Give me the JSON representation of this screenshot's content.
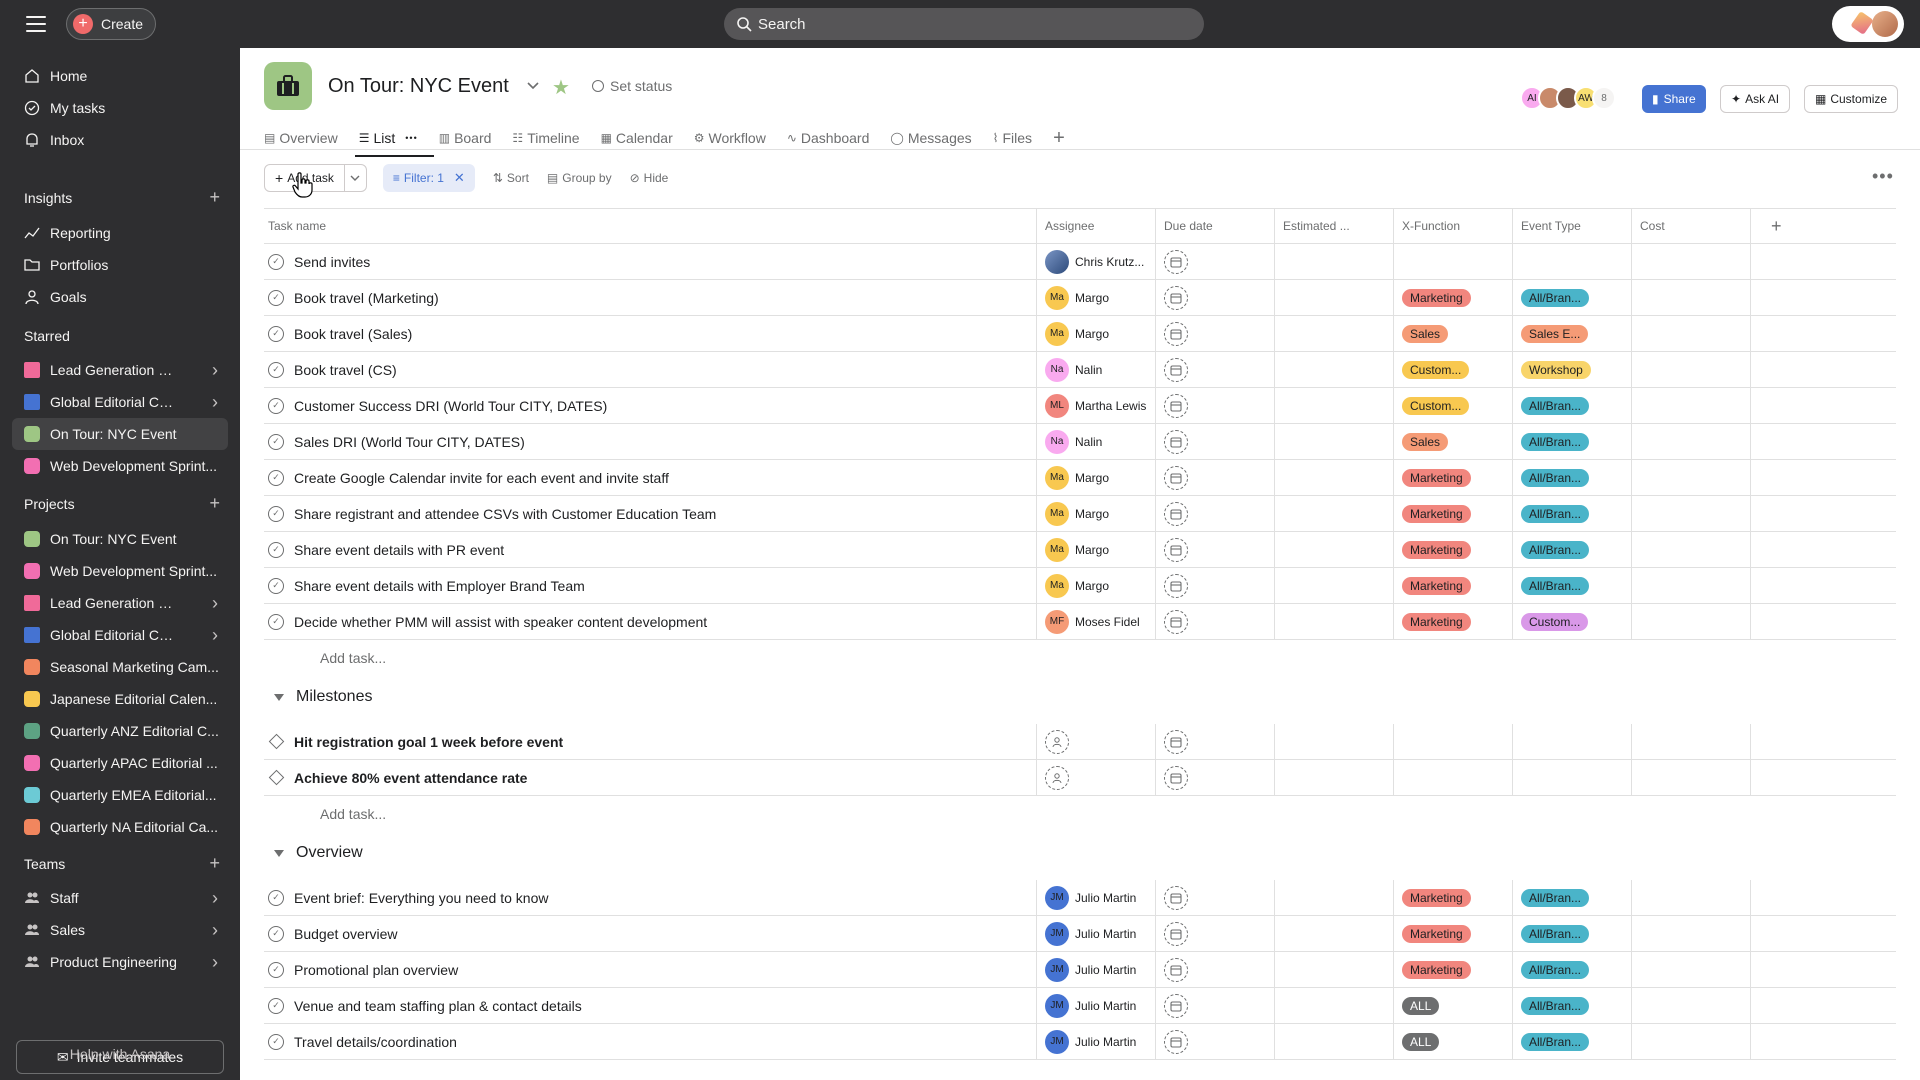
{
  "topbar": {
    "create_label": "Create",
    "search_placeholder": "Search"
  },
  "sidebar": {
    "nav": [
      {
        "label": "Home",
        "icon": "home-icon"
      },
      {
        "label": "My tasks",
        "icon": "check-circle-icon"
      },
      {
        "label": "Inbox",
        "icon": "bell-icon"
      }
    ],
    "insights_header": "Insights",
    "insights": [
      {
        "label": "Reporting",
        "icon": "chart-line-icon"
      },
      {
        "label": "Portfolios",
        "icon": "folder-icon"
      },
      {
        "label": "Goals",
        "icon": "person-icon"
      }
    ],
    "starred_header": "Starred",
    "starred": [
      {
        "label": "Lead Generation Ca...",
        "color": "#f06a99",
        "kind": "folder",
        "chevron": true
      },
      {
        "label": "Global Editorial Cale...",
        "color": "#4573d2",
        "kind": "folder",
        "chevron": true
      },
      {
        "label": "On Tour: NYC Event",
        "color": "#9ec684",
        "kind": "project",
        "chevron": false,
        "active": true
      },
      {
        "label": "Web Development Sprint...",
        "color": "#f26fb2",
        "kind": "project",
        "chevron": false
      }
    ],
    "projects_header": "Projects",
    "projects": [
      {
        "label": "On Tour: NYC Event",
        "color": "#9ec684",
        "kind": "project",
        "chevron": false
      },
      {
        "label": "Web Development Sprint...",
        "color": "#f26fb2",
        "kind": "project",
        "chevron": false
      },
      {
        "label": "Lead Generation Ca...",
        "color": "#f06a99",
        "kind": "folder",
        "chevron": true
      },
      {
        "label": "Global Editorial Cale...",
        "color": "#4573d2",
        "kind": "folder",
        "chevron": true
      },
      {
        "label": "Seasonal Marketing Cam...",
        "color": "#f1865e",
        "kind": "project",
        "chevron": false
      },
      {
        "label": "Japanese Editorial Calen...",
        "color": "#f8c850",
        "kind": "project",
        "chevron": false
      },
      {
        "label": "Quarterly ANZ Editorial C...",
        "color": "#5da283",
        "kind": "project",
        "chevron": false
      },
      {
        "label": "Quarterly APAC Editorial ...",
        "color": "#f26fb2",
        "kind": "project",
        "chevron": false
      },
      {
        "label": "Quarterly EMEA Editorial...",
        "color": "#6ccad5",
        "kind": "project",
        "chevron": false
      },
      {
        "label": "Quarterly NA Editorial Ca...",
        "color": "#f1865e",
        "kind": "project",
        "chevron": false
      }
    ],
    "teams_header": "Teams",
    "teams": [
      {
        "label": "Staff"
      },
      {
        "label": "Sales"
      },
      {
        "label": "Product Engineering"
      }
    ],
    "invite_label": "Invite teammates",
    "help_label": "Help with Asana"
  },
  "project": {
    "title": "On Tour: NYC Event",
    "set_status": "Set status",
    "members_count": "8",
    "members": [
      {
        "initials": "AI",
        "color": "#f9aaef"
      },
      {
        "initials": "",
        "color": "#c98a6a"
      },
      {
        "initials": "",
        "color": "#7a5a4a"
      },
      {
        "initials": "AW",
        "color": "#f8df72"
      }
    ],
    "share_label": "Share",
    "askai_label": "Ask AI",
    "customize_label": "Customize"
  },
  "tabs": [
    {
      "label": "Overview",
      "icon": "▤"
    },
    {
      "label": "List",
      "icon": "☰",
      "active": true
    },
    {
      "label": "Board",
      "icon": "▥"
    },
    {
      "label": "Timeline",
      "icon": "☷"
    },
    {
      "label": "Calendar",
      "icon": "▦"
    },
    {
      "label": "Workflow",
      "icon": "⚙"
    },
    {
      "label": "Dashboard",
      "icon": "∿"
    },
    {
      "label": "Messages",
      "icon": "◯"
    },
    {
      "label": "Files",
      "icon": "⌇"
    }
  ],
  "toolbar": {
    "add_task": "Add task",
    "filter": "Filter: 1",
    "sort": "Sort",
    "group_by": "Group by",
    "hide": "Hide"
  },
  "columns": [
    "Task name",
    "Assignee",
    "Due date",
    "Estimated ...",
    "X-Function",
    "Event Type",
    "Cost"
  ],
  "pill_colors": {
    "Marketing": "#f1867e",
    "Sales": "#f59b76",
    "Custom...": "#f8c850",
    "ALL": "#6d6e6f",
    "All/Bran...": "#4ab4c9",
    "Sales E...": "#f59b76",
    "Workshop": "#f8d46a",
    "Custom...E": "#d998e8"
  },
  "tasks": [
    {
      "name": "Send invites",
      "assignee": "Chris Krutz...",
      "initials": "",
      "av_color": "#4a6fa5",
      "xfn": "",
      "event": ""
    },
    {
      "name": "Book travel (Marketing)",
      "assignee": "Margo",
      "initials": "Ma",
      "av_color": "#f8c850",
      "xfn": "Marketing",
      "event": "All/Bran..."
    },
    {
      "name": "Book travel (Sales)",
      "assignee": "Margo",
      "initials": "Ma",
      "av_color": "#f8c850",
      "xfn": "Sales",
      "event": "Sales E..."
    },
    {
      "name": "Book travel (CS)",
      "assignee": "Nalin",
      "initials": "Na",
      "av_color": "#f9aaef",
      "xfn": "Custom...",
      "event": "Workshop"
    },
    {
      "name": "Customer Success DRI (World Tour CITY, DATES)",
      "assignee": "Martha Lewis",
      "initials": "ML",
      "av_color": "#f1867e",
      "xfn": "Custom...",
      "event": "All/Bran..."
    },
    {
      "name": "Sales DRI (World Tour CITY, DATES)",
      "assignee": "Nalin",
      "initials": "Na",
      "av_color": "#f9aaef",
      "xfn": "Sales",
      "event": "All/Bran..."
    },
    {
      "name": "Create Google Calendar invite for each event and invite staff",
      "assignee": "Margo",
      "initials": "Ma",
      "av_color": "#f8c850",
      "xfn": "Marketing",
      "event": "All/Bran..."
    },
    {
      "name": "Share registrant and attendee CSVs with Customer Education Team",
      "assignee": "Margo",
      "initials": "Ma",
      "av_color": "#f8c850",
      "xfn": "Marketing",
      "event": "All/Bran..."
    },
    {
      "name": "Share event details with PR event",
      "assignee": "Margo",
      "initials": "Ma",
      "av_color": "#f8c850",
      "xfn": "Marketing",
      "event": "All/Bran..."
    },
    {
      "name": "Share event details with Employer Brand Team",
      "assignee": "Margo",
      "initials": "Ma",
      "av_color": "#f8c850",
      "xfn": "Marketing",
      "event": "All/Bran..."
    },
    {
      "name": "Decide whether PMM will assist with speaker content development",
      "assignee": "Moses Fidel",
      "initials": "MF",
      "av_color": "#f59b76",
      "xfn": "Marketing",
      "event": "Custom..."
    }
  ],
  "add_task_row": "Add task...",
  "milestones_section": "Milestones",
  "milestones": [
    {
      "name": "Hit registration goal 1 week before event"
    },
    {
      "name": "Achieve 80% event attendance rate"
    }
  ],
  "overview_section": "Overview",
  "overview_tasks": [
    {
      "name": "Event brief: Everything you need to know",
      "assignee": "Julio Martin",
      "initials": "JM",
      "av_color": "#4573d2",
      "xfn": "Marketing",
      "event": "All/Bran..."
    },
    {
      "name": "Budget overview",
      "assignee": "Julio Martin",
      "initials": "JM",
      "av_color": "#4573d2",
      "xfn": "Marketing",
      "event": "All/Bran..."
    },
    {
      "name": "Promotional plan overview",
      "assignee": "Julio Martin",
      "initials": "JM",
      "av_color": "#4573d2",
      "xfn": "Marketing",
      "event": "All/Bran..."
    },
    {
      "name": "Venue and team staffing plan & contact details",
      "assignee": "Julio Martin",
      "initials": "JM",
      "av_color": "#4573d2",
      "xfn": "ALL",
      "event": "All/Bran..."
    },
    {
      "name": "Travel details/coordination",
      "assignee": "Julio Martin",
      "initials": "JM",
      "av_color": "#4573d2",
      "xfn": "ALL",
      "event": "All/Bran..."
    }
  ]
}
